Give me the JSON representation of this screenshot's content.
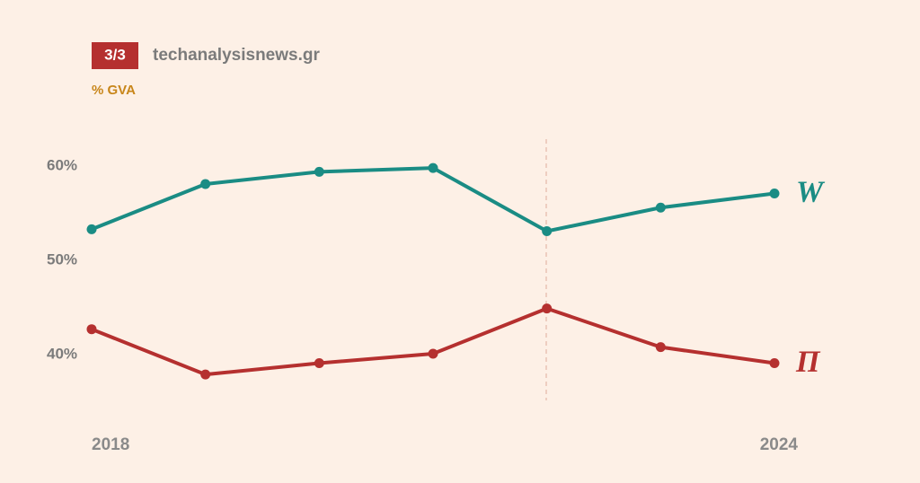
{
  "header": {
    "badge": "3/3",
    "source": "techanalysisnews.gr"
  },
  "chart_data": {
    "type": "line",
    "subtitle": "% GVA",
    "categories": [
      "2018",
      null,
      null,
      null,
      null,
      null,
      "2024"
    ],
    "series": [
      {
        "name": "W",
        "color": "#1a8c84",
        "values": [
          53.2,
          58.0,
          59.3,
          59.7,
          53.0,
          55.5,
          57.0
        ]
      },
      {
        "name": "Π",
        "color": "#b5302f",
        "values": [
          42.6,
          37.8,
          39.0,
          40.0,
          44.8,
          40.7,
          39.0
        ]
      }
    ],
    "ylim": [
      35,
      63
    ],
    "yticks": [
      {
        "value": 40,
        "label": "40%"
      },
      {
        "value": 50,
        "label": "50%"
      },
      {
        "value": 60,
        "label": "60%"
      }
    ]
  }
}
